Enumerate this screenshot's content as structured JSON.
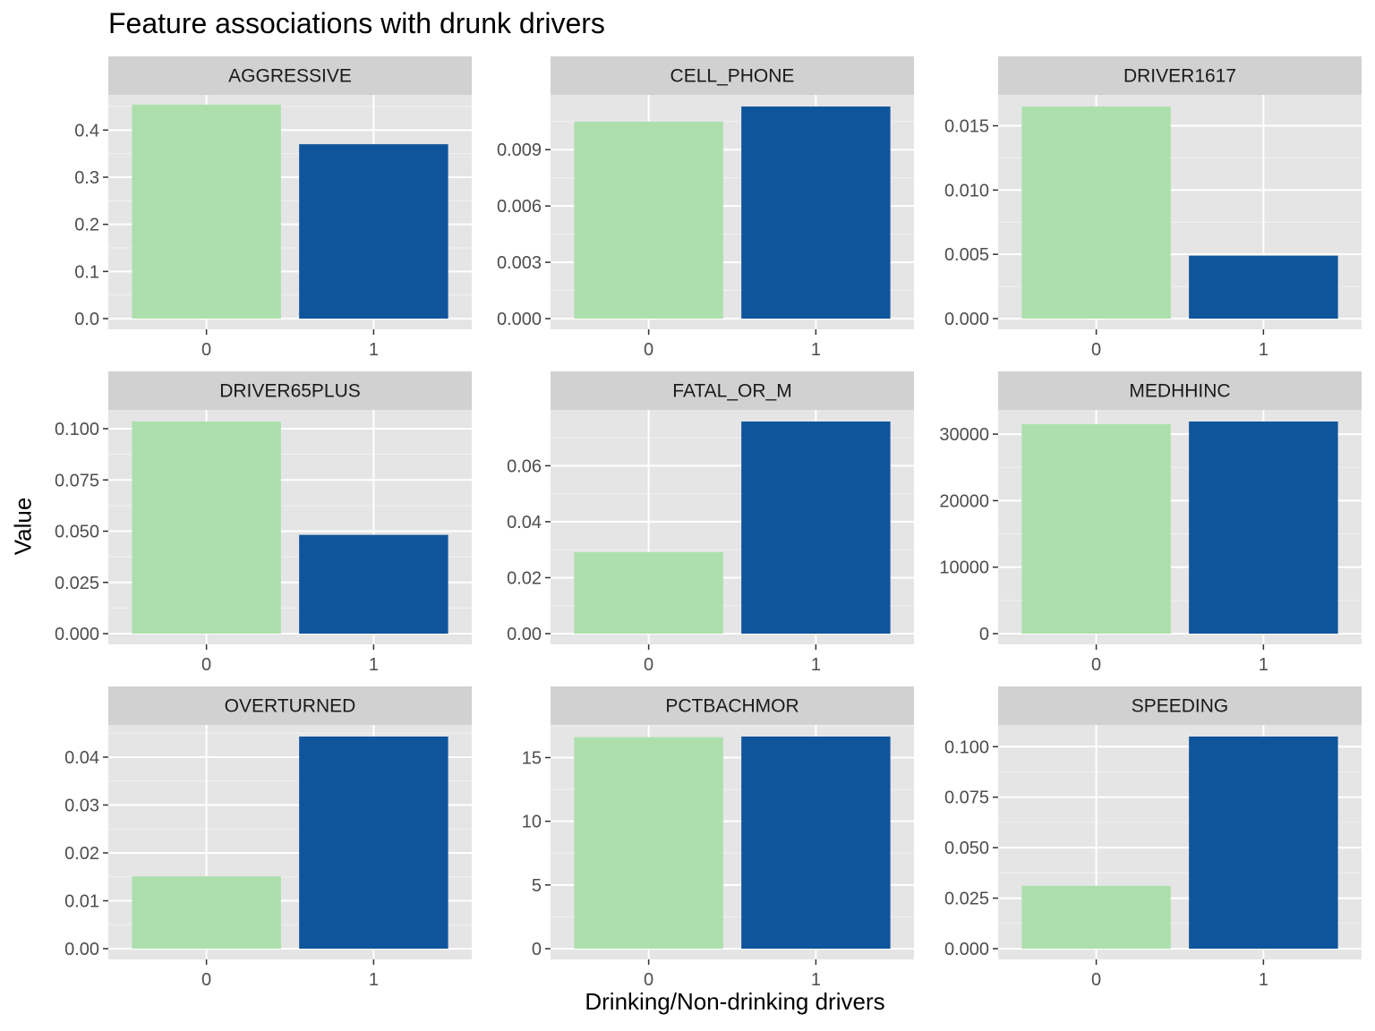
{
  "chart_data": {
    "type": "bar",
    "title": "Feature associations with drunk drivers",
    "xlabel": "Drinking/Non-drinking drivers",
    "ylabel": "Value",
    "colors": {
      "0": "#ADDFAD",
      "1": "#10559C",
      "panel_bg": "#E5E5E5",
      "strip_bg": "#D1D1D1"
    },
    "grid": true,
    "legend": "none",
    "categories": [
      "0",
      "1"
    ],
    "panels": [
      {
        "name": "AGGRESSIVE",
        "values": [
          0.454,
          0.37
        ],
        "ylim": [
          0,
          0.45
        ],
        "ticks": [
          0.0,
          0.1,
          0.2,
          0.3,
          0.4
        ],
        "tick_labels": [
          "0.0",
          "0.1",
          "0.2",
          "0.3",
          "0.4"
        ]
      },
      {
        "name": "CELL_PHONE",
        "values": [
          0.0105,
          0.0113
        ],
        "ylim": [
          0,
          0.0113
        ],
        "ticks": [
          0,
          0.003,
          0.006,
          0.009
        ],
        "tick_labels": [
          "0.000",
          "0.003",
          "0.006",
          "0.009"
        ]
      },
      {
        "name": "DRIVER1617",
        "values": [
          0.0165,
          0.0049
        ],
        "ylim": [
          0,
          0.0165
        ],
        "ticks": [
          0,
          0.005,
          0.01,
          0.015
        ],
        "tick_labels": [
          "0.000",
          "0.005",
          "0.010",
          "0.015"
        ]
      },
      {
        "name": "DRIVER65PLUS",
        "values": [
          0.1035,
          0.0482
        ],
        "ylim": [
          0,
          0.1035
        ],
        "ticks": [
          0,
          0.025,
          0.05,
          0.075,
          0.1
        ],
        "tick_labels": [
          "0.000",
          "0.025",
          "0.050",
          "0.075",
          "0.100"
        ]
      },
      {
        "name": "FATAL_OR_M",
        "values": [
          0.0291,
          0.0758
        ],
        "ylim": [
          0,
          0.0758
        ],
        "ticks": [
          0,
          0.02,
          0.04,
          0.06
        ],
        "tick_labels": [
          "0.00",
          "0.02",
          "0.04",
          "0.06"
        ]
      },
      {
        "name": "MEDHHINC",
        "values": [
          31500,
          31900
        ],
        "ylim": [
          0,
          31900
        ],
        "ticks": [
          0,
          10000,
          20000,
          30000
        ],
        "tick_labels": [
          "0",
          "10000",
          "20000",
          "30000"
        ]
      },
      {
        "name": "OVERTURNED",
        "values": [
          0.0151,
          0.0443
        ],
        "ylim": [
          0,
          0.0443
        ],
        "ticks": [
          0,
          0.01,
          0.02,
          0.03,
          0.04
        ],
        "tick_labels": [
          "0.00",
          "0.01",
          "0.02",
          "0.03",
          "0.04"
        ]
      },
      {
        "name": "PCTBACHMOR",
        "values": [
          16.6,
          16.65
        ],
        "ylim": [
          0,
          16.65
        ],
        "ticks": [
          0,
          5,
          10,
          15
        ],
        "tick_labels": [
          "0",
          "5",
          "10",
          "15"
        ]
      },
      {
        "name": "SPEEDING",
        "values": [
          0.0311,
          0.105
        ],
        "ylim": [
          0,
          0.105
        ],
        "ticks": [
          0,
          0.025,
          0.05,
          0.075,
          0.1
        ],
        "tick_labels": [
          "0.000",
          "0.025",
          "0.050",
          "0.075",
          "0.100"
        ]
      }
    ]
  }
}
